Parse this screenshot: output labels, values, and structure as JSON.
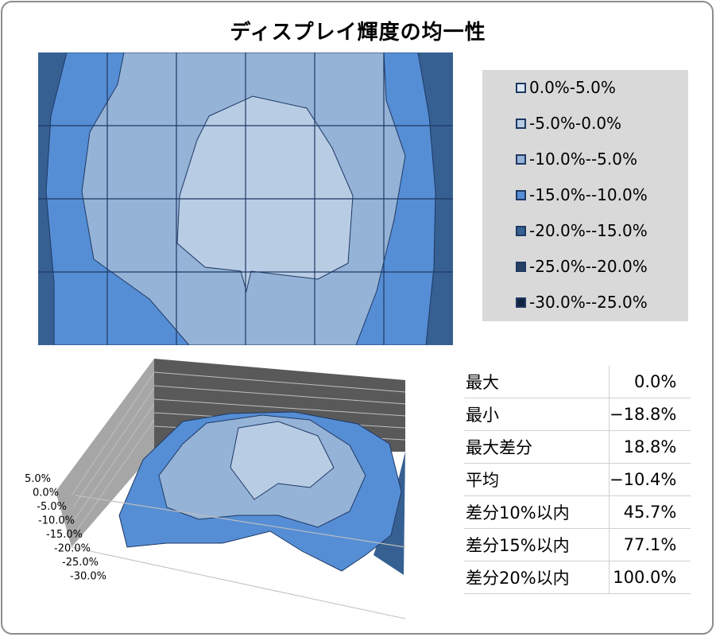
{
  "title": "ディスプレイ輝度の均一性",
  "legend": [
    {
      "label": "0.0%-5.0%",
      "color": "#dce6f2"
    },
    {
      "label": "-5.0%-0.0%",
      "color": "#b8cce4"
    },
    {
      "label": "-10.0%--5.0%",
      "color": "#95b3d7"
    },
    {
      "label": "-15.0%--10.0%",
      "color": "#558ed5"
    },
    {
      "label": "-20.0%--15.0%",
      "color": "#376092"
    },
    {
      "label": "-25.0%--20.0%",
      "color": "#254061"
    },
    {
      "label": "-30.0%--25.0%",
      "color": "#10243f"
    }
  ],
  "surface_axis_labels": [
    "5.0%",
    "0.0%",
    "-5.0%",
    "-10.0%",
    "-15.0%",
    "-20.0%",
    "-25.0%",
    "-30.0%"
  ],
  "stats": [
    {
      "key": "最大",
      "value": "0.0%"
    },
    {
      "key": "最小",
      "value": "−18.8%"
    },
    {
      "key": "最大差分",
      "value": "18.8%"
    },
    {
      "key": "平均",
      "value": "−10.4%"
    },
    {
      "key": "差分10%以内",
      "value": "45.7%"
    },
    {
      "key": "差分15%以内",
      "value": "77.1%"
    },
    {
      "key": "差分20%以内",
      "value": "100.0%"
    }
  ],
  "chart_data": [
    {
      "type": "heatmap",
      "title": "ディスプレイ輝度の均一性",
      "series": [
        {
          "name": "0.0%-5.0%"
        },
        {
          "name": "-5.0%-0.0%"
        },
        {
          "name": "-10.0%--5.0%"
        },
        {
          "name": "-15.0%--10.0%"
        },
        {
          "name": "-20.0%--15.0%"
        },
        {
          "name": "-25.0%--20.0%"
        },
        {
          "name": "-30.0%--25.0%"
        }
      ]
    },
    {
      "type": "area",
      "ylim": [
        -30.0,
        5.0
      ],
      "ticks": [
        "5.0%",
        "0.0%",
        "-5.0%",
        "-10.0%",
        "-15.0%",
        "-20.0%",
        "-25.0%",
        "-30.0%"
      ]
    }
  ]
}
